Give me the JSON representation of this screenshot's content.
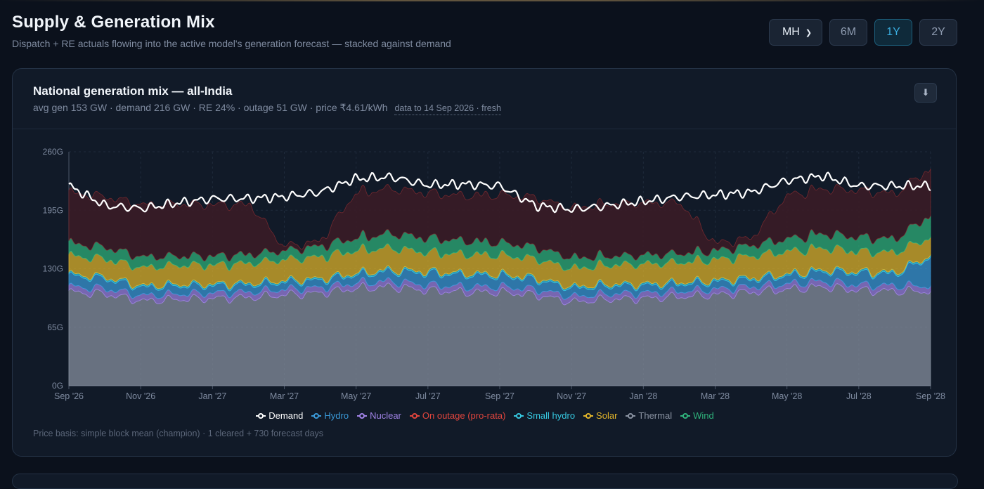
{
  "page": {
    "title": "Supply & Generation Mix",
    "subtitle": "Dispatch + RE actuals flowing into the active model's generation forecast — stacked against demand"
  },
  "controls": {
    "region": "MH",
    "ranges": [
      "6M",
      "1Y",
      "2Y"
    ],
    "active_range": "1Y"
  },
  "card": {
    "title": "National generation mix — all-India",
    "stats": "avg gen 153 GW · demand 216 GW · RE 24% · outage 51 GW · price ₹4.61/kWh",
    "freshness": "data to 14 Sep 2026 · fresh",
    "download_icon": "download-icon",
    "footnote": "Price basis: simple block mean (champion) · 1 cleared + 730 forecast days"
  },
  "chart_data": {
    "type": "area",
    "stacked": true,
    "x_range": [
      "2026-09-14",
      "2028-09-14"
    ],
    "x_tick_labels": [
      "Sep '26",
      "Nov '26",
      "Jan '27",
      "Mar '27",
      "May '27",
      "Jul '27",
      "Sep '27",
      "Nov '27",
      "Jan '28",
      "Mar '28",
      "May '28",
      "Jul '28",
      "Sep '28"
    ],
    "y_tick_labels": [
      "0G",
      "65G",
      "130G",
      "195G",
      "260G"
    ],
    "ylim": [
      0,
      260
    ],
    "y_unit": "GW",
    "grid": true,
    "legend_position": "bottom",
    "knots": [
      "2026-09-14",
      "2026-10-15",
      "2026-11-15",
      "2026-12-15",
      "2027-01-15",
      "2027-02-15",
      "2027-03-15",
      "2027-04-15",
      "2027-05-15",
      "2027-06-15",
      "2027-07-15",
      "2027-08-15",
      "2027-09-15",
      "2027-10-15",
      "2027-11-15",
      "2027-12-15",
      "2028-01-15",
      "2028-02-15",
      "2028-03-15",
      "2028-04-15",
      "2028-05-15",
      "2028-06-15",
      "2028-07-15",
      "2028-08-15",
      "2028-09-14"
    ],
    "series": [
      {
        "name": "Thermal",
        "color": "#8a93a2",
        "values": [
          104,
          102,
          94,
          96,
          97,
          98,
          101,
          103,
          108,
          110,
          106,
          104,
          104,
          101,
          93,
          96,
          97,
          99,
          101,
          104,
          107,
          110,
          106,
          105,
          105
        ]
      },
      {
        "name": "Nuclear",
        "color": "#a083e6",
        "values": [
          6,
          6,
          6,
          6,
          6,
          6,
          6,
          6,
          6,
          6,
          6,
          6,
          6,
          6,
          6,
          6,
          6,
          6,
          6,
          6,
          6,
          6,
          6,
          6,
          6
        ]
      },
      {
        "name": "Hydro",
        "color": "#3a9ad9",
        "values": [
          12,
          11,
          9,
          9,
          8,
          8,
          8,
          8,
          9,
          11,
          13,
          13,
          12,
          11,
          9,
          9,
          8,
          8,
          8,
          8,
          9,
          11,
          13,
          13,
          32
        ]
      },
      {
        "name": "Small hydro",
        "color": "#36c8e0",
        "values": [
          2,
          2,
          2,
          2,
          2,
          2,
          2,
          2,
          2,
          2,
          2,
          2,
          2,
          2,
          2,
          2,
          2,
          2,
          2,
          2,
          2,
          2,
          2,
          2,
          2
        ]
      },
      {
        "name": "Solar",
        "color": "#e2b52a",
        "values": [
          20,
          20,
          20,
          21,
          21,
          22,
          23,
          24,
          25,
          24,
          21,
          21,
          21,
          21,
          20,
          21,
          22,
          22,
          23,
          24,
          25,
          24,
          22,
          22,
          20
        ]
      },
      {
        "name": "Wind",
        "color": "#2fb37c",
        "values": [
          14,
          13,
          12,
          10,
          10,
          10,
          10,
          12,
          14,
          16,
          16,
          15,
          14,
          13,
          12,
          10,
          10,
          10,
          10,
          12,
          14,
          16,
          16,
          15,
          25
        ]
      },
      {
        "name": "On outage (pro-rata)",
        "color": "#e0453d",
        "values": [
          56,
          56,
          58,
          58,
          57,
          55,
          5,
          5,
          50,
          50,
          50,
          50,
          53,
          55,
          55,
          58,
          58,
          56,
          8,
          8,
          48,
          50,
          52,
          50,
          52
        ]
      }
    ],
    "demand": {
      "name": "Demand",
      "color": "#ffffff",
      "values": [
        222,
        200,
        197,
        203,
        208,
        208,
        210,
        215,
        230,
        232,
        223,
        224,
        222,
        200,
        196,
        200,
        205,
        210,
        212,
        215,
        228,
        233,
        222,
        222,
        222
      ]
    },
    "legend": [
      {
        "name": "Demand",
        "color": "#ffffff"
      },
      {
        "name": "Hydro",
        "color": "#3a9ad9"
      },
      {
        "name": "Nuclear",
        "color": "#a083e6"
      },
      {
        "name": "On outage (pro-rata)",
        "color": "#e0453d"
      },
      {
        "name": "Small hydro",
        "color": "#36c8e0"
      },
      {
        "name": "Solar",
        "color": "#e2b52a"
      },
      {
        "name": "Thermal",
        "color": "#8a93a2"
      },
      {
        "name": "Wind",
        "color": "#2fb37c"
      }
    ]
  }
}
